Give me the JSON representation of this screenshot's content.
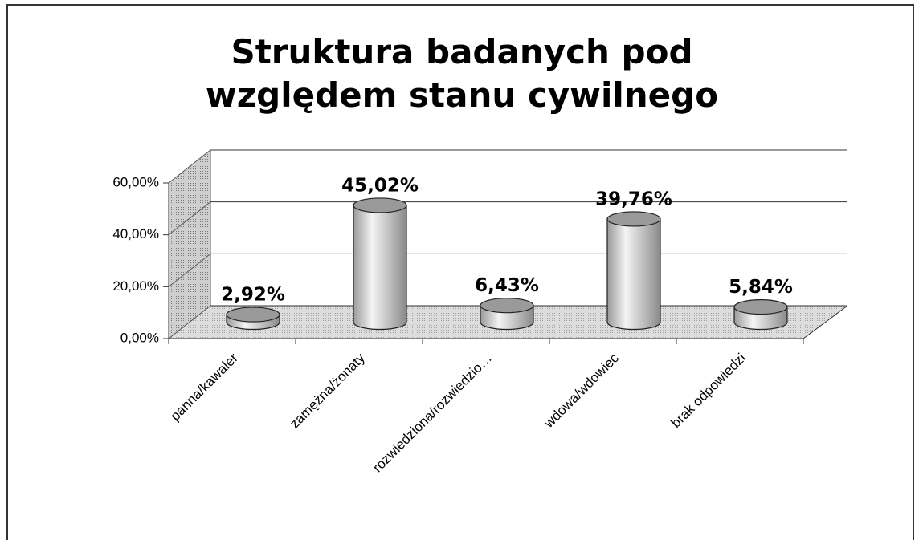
{
  "chart_data": {
    "type": "bar3d",
    "title": "Struktura badanych pod względem stanu cywilnego",
    "categories": [
      "panna/kawaler",
      "zamężna/żonaty",
      "rozwiedziona/rozwiedzio…",
      "wdowa/wdowiec",
      "brak odpowiedzi"
    ],
    "values": [
      2.92,
      45.02,
      6.43,
      39.76,
      5.84
    ],
    "value_labels": [
      "2,92%",
      "45,02%",
      "6,43%",
      "39,76%",
      "5,84%"
    ],
    "color": "#d8d8d8",
    "ylim": [
      0,
      60
    ],
    "yticks": [
      {
        "value": 0,
        "label": "0,00%"
      },
      {
        "value": 20,
        "label": "20,00%"
      },
      {
        "value": 40,
        "label": "40,00%"
      },
      {
        "value": 60,
        "label": "60,00%"
      }
    ],
    "grid": true
  }
}
